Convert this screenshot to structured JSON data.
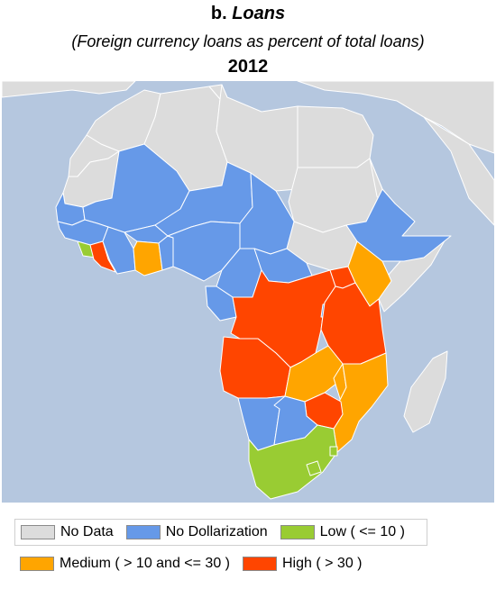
{
  "title": {
    "prefix": "b.",
    "name": "Loans"
  },
  "subtitle": "(Foreign currency loans as percent of total loans)",
  "year": "2012",
  "colors": {
    "no_data": "#dcdcdc",
    "no_dollarization": "#6699e8",
    "low": "#99cc33",
    "medium": "#ffa500",
    "high": "#ff4500",
    "ocean": "#b5c7df",
    "border": "#ffffff"
  },
  "legend": [
    {
      "key": "no_data",
      "label": "No Data"
    },
    {
      "key": "no_dollarization",
      "label": "No Dollarization"
    },
    {
      "key": "low",
      "label": "Low ( <= 10 )"
    },
    {
      "key": "medium",
      "label": "Medium ( > 10 and <= 30 )"
    },
    {
      "key": "high",
      "label": "High ( > 30 )"
    }
  ],
  "regions": [
    {
      "name": "Morocco",
      "category": "no_data"
    },
    {
      "name": "Algeria",
      "category": "no_data"
    },
    {
      "name": "Tunisia",
      "category": "no_data"
    },
    {
      "name": "Libya",
      "category": "no_data"
    },
    {
      "name": "Egypt",
      "category": "no_data"
    },
    {
      "name": "Western Sahara",
      "category": "no_data"
    },
    {
      "name": "Mauritania",
      "category": "no_data"
    },
    {
      "name": "Sudan",
      "category": "no_data"
    },
    {
      "name": "South Sudan",
      "category": "no_data"
    },
    {
      "name": "Eritrea",
      "category": "no_data"
    },
    {
      "name": "Somalia",
      "category": "no_data"
    },
    {
      "name": "Madagascar",
      "category": "no_data"
    },
    {
      "name": "Namibia",
      "category": "no_dollarization"
    },
    {
      "name": "Mali",
      "category": "no_dollarization"
    },
    {
      "name": "Niger",
      "category": "no_dollarization"
    },
    {
      "name": "Chad",
      "category": "no_dollarization"
    },
    {
      "name": "Senegal",
      "category": "no_dollarization"
    },
    {
      "name": "Guinea",
      "category": "no_dollarization"
    },
    {
      "name": "Burkina Faso",
      "category": "no_dollarization"
    },
    {
      "name": "Nigeria",
      "category": "no_dollarization"
    },
    {
      "name": "Cameroon",
      "category": "no_dollarization"
    },
    {
      "name": "Central African Republic",
      "category": "no_dollarization"
    },
    {
      "name": "Ethiopia",
      "category": "no_dollarization"
    },
    {
      "name": "Gabon",
      "category": "no_dollarization"
    },
    {
      "name": "Botswana",
      "category": "no_dollarization"
    },
    {
      "name": "Rwanda",
      "category": "no_dollarization"
    },
    {
      "name": "Cote d'Ivoire",
      "category": "no_dollarization"
    },
    {
      "name": "Togo",
      "category": "no_dollarization"
    },
    {
      "name": "Benin",
      "category": "no_dollarization"
    },
    {
      "name": "Sierra Leone",
      "category": "low"
    },
    {
      "name": "South Africa",
      "category": "low"
    },
    {
      "name": "Lesotho",
      "category": "low"
    },
    {
      "name": "Swaziland",
      "category": "low"
    },
    {
      "name": "Ghana",
      "category": "medium"
    },
    {
      "name": "Kenya",
      "category": "medium"
    },
    {
      "name": "Zambia",
      "category": "medium"
    },
    {
      "name": "Mozambique",
      "category": "medium"
    },
    {
      "name": "Malawi",
      "category": "medium"
    },
    {
      "name": "Liberia",
      "category": "high"
    },
    {
      "name": "DR Congo",
      "category": "high"
    },
    {
      "name": "Uganda",
      "category": "high"
    },
    {
      "name": "Tanzania",
      "category": "high"
    },
    {
      "name": "Angola",
      "category": "high"
    },
    {
      "name": "Zimbabwe",
      "category": "high"
    }
  ]
}
